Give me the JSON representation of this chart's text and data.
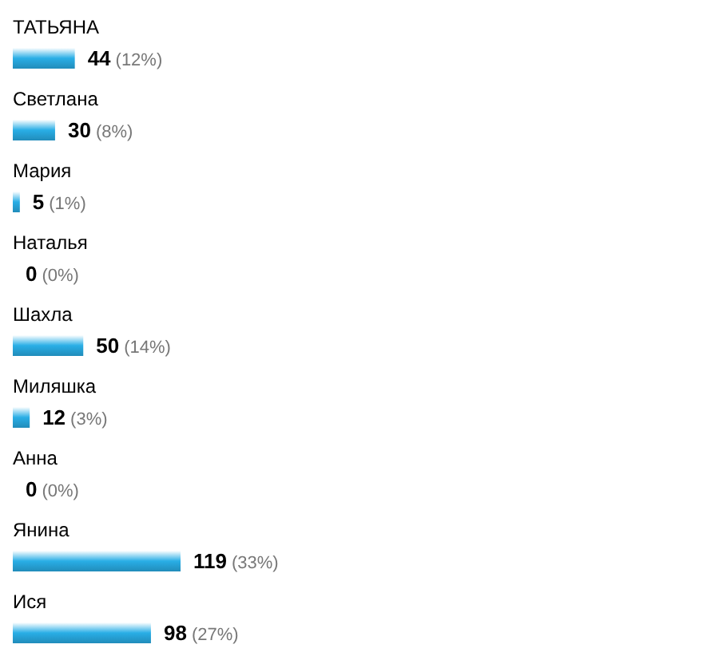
{
  "chart_data": {
    "type": "bar",
    "orientation": "horizontal",
    "categories": [
      "ТАТЬЯНА",
      "Светлана",
      "Мария",
      "Наталья",
      "Шахла",
      "Миляшка",
      "Анна",
      "Янина",
      "Ися"
    ],
    "values": [
      44,
      30,
      5,
      0,
      50,
      12,
      0,
      119,
      98
    ],
    "value_labels": [
      "44 (12%)",
      "30 (8%)",
      "5 (1%)",
      "0 (0%)",
      "50 (14%)",
      "12 (3%)",
      "0 (0%)",
      "119 (33%)",
      "98 (27%)"
    ],
    "color": "#29aee6"
  }
}
